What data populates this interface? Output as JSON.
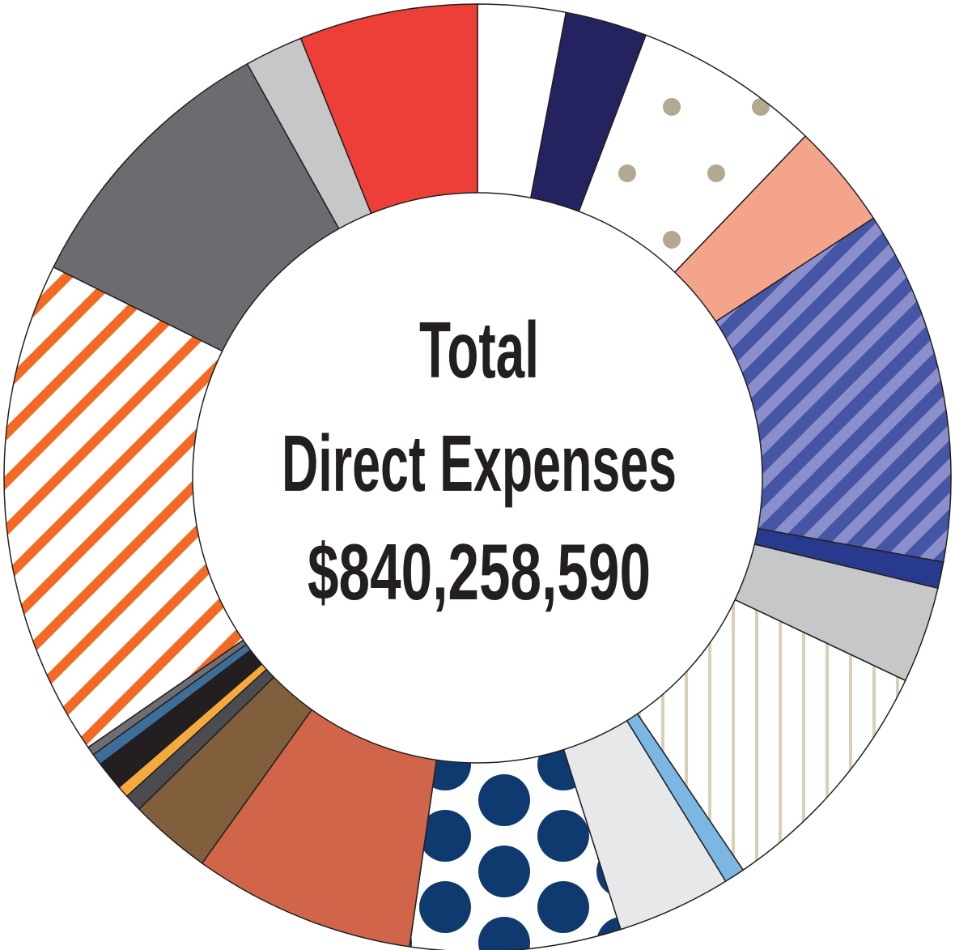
{
  "chart_data": {
    "type": "donut",
    "center_text": [
      "Total",
      "Direct Expenses",
      "$840,258,590"
    ],
    "values": [
      3.0,
      2.8,
      6.4,
      3.6,
      12.1,
      0.9,
      3.3,
      8.5,
      0.7,
      3.9,
      7.2,
      7.6,
      2.8,
      0.6,
      0.4,
      1.0,
      0.4,
      0.3,
      17.0,
      9.6,
      2.0,
      6.1
    ],
    "colors": [
      "#ffffff",
      "#252260",
      "#ffffff",
      "#f4a48a",
      "#4656a4",
      "#283a8e",
      "#c6c7c9",
      "#ffffff",
      "#7cb6e2",
      "#e7e8ea",
      "#ffffff",
      "#d06549",
      "#815f3c",
      "#4a4c50",
      "#f6a93f",
      "#231f20",
      "#3b6e99",
      "#6d6e72",
      "#ffffff",
      "#6b6c70",
      "#c6c7c9",
      "#ee3e38"
    ],
    "patterns": [
      null,
      null,
      {
        "kind": "small-dots",
        "color": "#b3a890"
      },
      null,
      {
        "kind": "diagonal-stripes",
        "color": "#8a8fcb"
      },
      null,
      null,
      {
        "kind": "vertical-stripes",
        "color": "#d9cfb5"
      },
      null,
      null,
      {
        "kind": "large-dots",
        "color": "#0e3a70"
      },
      null,
      null,
      null,
      null,
      null,
      null,
      null,
      {
        "kind": "diagonal-stripes",
        "color": "#f26a25"
      },
      null,
      null,
      null
    ]
  }
}
